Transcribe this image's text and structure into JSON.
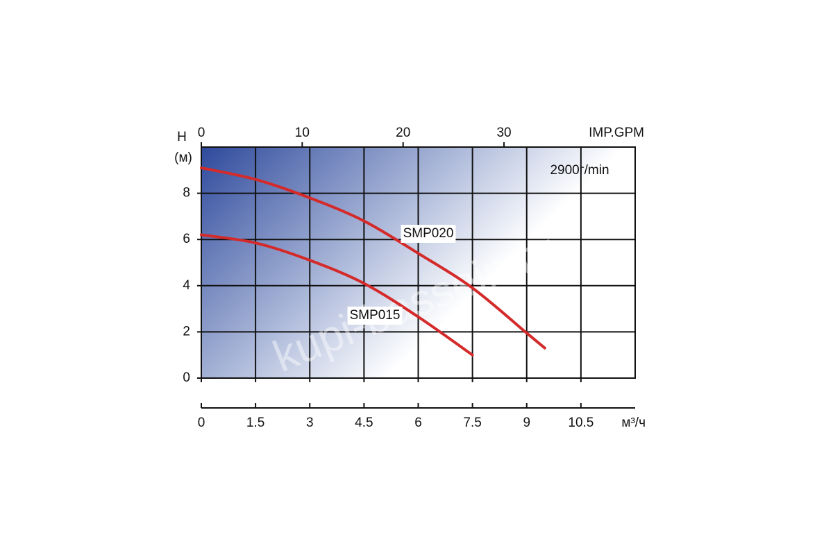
{
  "chart_data": {
    "type": "line",
    "x_label": "м³/ч",
    "x2_label": "IMP.GPM",
    "y_label": "H",
    "y_unit": "(м)",
    "annotation": "2900г/min",
    "watermark": "kupi-bassein.ru",
    "x": [
      0,
      1.5,
      3,
      4.5,
      6,
      7.5,
      9,
      9.5
    ],
    "series": [
      {
        "name": "SMP020",
        "color": "#d42a2a",
        "values": [
          9.1,
          8.6,
          7.8,
          6.8,
          5.4,
          3.9,
          1.95,
          1.3
        ]
      },
      {
        "name": "SMP015",
        "color": "#d42a2a",
        "values": [
          6.2,
          5.85,
          5.1,
          4.1,
          2.65,
          1.0,
          null,
          null
        ]
      }
    ],
    "xlim": [
      0,
      12
    ],
    "xticks": [
      0,
      1.5,
      3,
      4.5,
      6,
      7.5,
      9,
      10.5
    ],
    "x2lim": [
      0,
      43
    ],
    "x2ticks": [
      0,
      10,
      20,
      30
    ],
    "ylim": [
      0,
      10
    ],
    "yticks": [
      0,
      2,
      4,
      6,
      8
    ],
    "grid": true
  }
}
